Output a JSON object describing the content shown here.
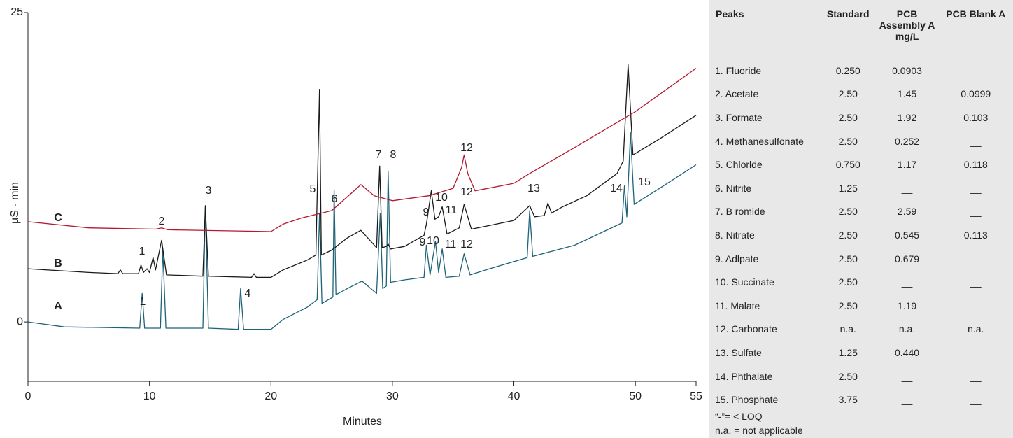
{
  "chart_data": {
    "type": "line",
    "x_label": "Minutes",
    "y_label": "µS - min",
    "xlim": [
      0,
      55
    ],
    "ylim": [
      -4.8,
      25
    ],
    "xticks": [
      0,
      10,
      20,
      30,
      40,
      50,
      55
    ],
    "yticks": [
      0,
      25
    ],
    "series": [
      {
        "name": "A",
        "color": "#1f6379",
        "x": [
          0,
          3,
          9.2,
          9.4,
          9.6,
          10.9,
          11.1,
          11.35,
          14.4,
          14.6,
          14.85,
          17.3,
          17.5,
          17.75,
          20,
          21,
          23,
          23.8,
          24,
          24.2,
          25.1,
          25.2,
          25.35,
          26.5,
          27.5,
          28.7,
          29,
          29.2,
          29.5,
          29.65,
          29.85,
          31,
          32.6,
          32.8,
          33.1,
          33.55,
          33.8,
          34.1,
          34.4,
          35.5,
          35.9,
          36.4,
          38,
          41.1,
          41.3,
          41.55,
          45,
          48.9,
          49.1,
          49.3,
          49.6,
          49.9,
          52,
          55
        ],
        "values": [
          0,
          -0.4,
          -0.5,
          2.3,
          -0.5,
          -0.5,
          5.9,
          -0.5,
          -0.5,
          9.3,
          -0.5,
          -0.6,
          2.7,
          -0.6,
          -0.6,
          0.2,
          1.2,
          1.8,
          8.8,
          1.5,
          2.0,
          10.7,
          2.2,
          2.8,
          3.3,
          2.3,
          8.8,
          2.7,
          2.9,
          12.2,
          3.2,
          3.4,
          3.6,
          6.2,
          3.8,
          6.5,
          4.0,
          5.9,
          3.6,
          3.7,
          5.5,
          3.8,
          4.3,
          5.2,
          9.0,
          5.3,
          6.2,
          8.0,
          11.0,
          8.5,
          15.3,
          9.5,
          10.8,
          12.7
        ]
      },
      {
        "name": "B",
        "color": "#1a1a1a",
        "x": [
          0,
          5,
          7.4,
          7.6,
          7.8,
          9.1,
          9.3,
          9.5,
          9.8,
          10.0,
          10.3,
          10.5,
          11.0,
          11.4,
          14.4,
          14.6,
          14.85,
          18.4,
          18.6,
          18.8,
          20,
          21,
          23,
          23.7,
          24.0,
          24.15,
          25,
          26.3,
          27.4,
          28.7,
          28.95,
          29.15,
          29.5,
          29.65,
          29.85,
          31,
          32.6,
          32.8,
          33.2,
          33.5,
          33.8,
          34.1,
          34.5,
          35.5,
          35.9,
          36.5,
          38,
          40,
          41.3,
          41.7,
          42.5,
          42.8,
          43.1,
          44,
          46,
          48.5,
          49.0,
          49.4,
          49.8,
          52,
          55
        ],
        "values": [
          4.3,
          4.0,
          3.9,
          4.2,
          3.9,
          3.9,
          4.6,
          4.0,
          4.3,
          4.0,
          5.2,
          4.2,
          6.6,
          3.8,
          3.7,
          9.4,
          3.7,
          3.6,
          3.9,
          3.6,
          3.6,
          4.2,
          5.0,
          5.4,
          18.8,
          5.4,
          5.8,
          6.8,
          7.4,
          6.0,
          12.6,
          6.0,
          6.1,
          6.3,
          5.9,
          6.1,
          7.0,
          7.9,
          10.6,
          8.3,
          8.5,
          9.3,
          7.1,
          7.6,
          9.5,
          7.5,
          7.8,
          8.2,
          9.4,
          8.5,
          8.6,
          9.6,
          8.8,
          9.3,
          10.2,
          12.0,
          13.0,
          20.8,
          13.5,
          14.8,
          16.7
        ]
      },
      {
        "name": "C",
        "color": "#b5182f",
        "x": [
          0,
          5,
          10.5,
          11,
          11.5,
          20,
          21,
          22.5,
          25,
          26.5,
          27.4,
          28.5,
          30,
          33,
          35,
          35.7,
          35.9,
          36.2,
          36.8,
          40,
          41.3,
          45,
          50,
          55
        ],
        "values": [
          8.1,
          7.6,
          7.5,
          7.6,
          7.45,
          7.3,
          7.9,
          8.4,
          9.0,
          10.3,
          11.1,
          10.2,
          9.8,
          10.2,
          10.8,
          12.5,
          13.5,
          12,
          10.6,
          11.2,
          12.0,
          14.1,
          17.0,
          20.5
        ]
      }
    ],
    "annotations": [
      "1",
      "4",
      "9",
      "10",
      "11",
      "12",
      "1",
      "2",
      "3",
      "5",
      "6",
      "7",
      "8",
      "9",
      "10",
      "11",
      "12",
      "12",
      "13",
      "14",
      "15"
    ]
  },
  "table": {
    "header": [
      "Peaks",
      "Standard",
      "PCB Assembly A mg/L",
      "PCB Blank A"
    ],
    "rows": [
      [
        "1. Fluoride",
        "0.250",
        "0.0903",
        "__"
      ],
      [
        "2. Acetate",
        "2.50",
        "1.45",
        "0.0999"
      ],
      [
        "3. Formate",
        "2.50",
        "1.92",
        "0.103"
      ],
      [
        "4. Methanesulfonate",
        "2.50",
        "0.252",
        "__"
      ],
      [
        "5. Chlorlde",
        "0.750",
        "1.17",
        "0.118"
      ],
      [
        "6. Nitrite",
        "1.25",
        "__",
        "__"
      ],
      [
        "7. B romide",
        "2.50",
        "2.59",
        "__"
      ],
      [
        "8. Nitrate",
        "2.50",
        "0.545",
        "0.113"
      ],
      [
        "9. Adlpate",
        "2.50",
        "0.679",
        "__"
      ],
      [
        "10. Succinate",
        "2.50",
        "__",
        "__"
      ],
      [
        "11. Malate",
        "2.50",
        "1.19",
        "__"
      ],
      [
        "12. Carbonate",
        "n.a.",
        "n.a.",
        "n.a."
      ],
      [
        "13. Sulfate",
        "1.25",
        "0.440",
        "__"
      ],
      [
        "14. Phthalate",
        "2.50",
        "__",
        "__"
      ],
      [
        "15. Phosphate",
        "3.75",
        "__",
        "__"
      ]
    ],
    "notes": [
      "“-”= < LOQ",
      "n.a. = not applicable"
    ]
  }
}
